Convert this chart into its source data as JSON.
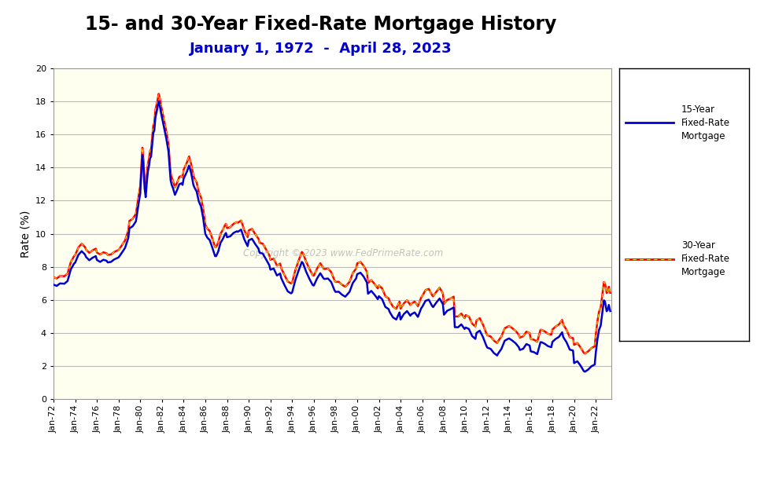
{
  "title": "15- and 30-Year Fixed-Rate Mortgage History",
  "subtitle": "January 1, 1972  -  April 28, 2023",
  "subtitle_color": "#0000CC",
  "ylabel": "Rate (%)",
  "background_color": "#FFFFFF",
  "plot_bg_color": "#FFFFF0",
  "grid_color": "#BBBBBB",
  "line_15yr_color": "#0000CC",
  "line_30yr_color": "#FF0000",
  "line_30yr_dash_color": "#FFD700",
  "ylim": [
    0,
    20
  ],
  "yticks": [
    0,
    2,
    4,
    6,
    8,
    10,
    12,
    14,
    16,
    18,
    20
  ],
  "copyright_text": "Copyright © 2023 www.FedPrimeRate.com",
  "legend_15yr": "15-Year\nFixed-Rate\nMortgage",
  "legend_30yr": "30-Year\nFixed-Rate\nMortgage",
  "title_fontsize": 17,
  "subtitle_fontsize": 13,
  "axis_label_fontsize": 10,
  "tick_fontsize": 8,
  "xtick_years_start": 1972,
  "xtick_years_end": 2024,
  "xtick_years_step": 2,
  "xlim_start": 1972.0,
  "xlim_end": 2023.42
}
